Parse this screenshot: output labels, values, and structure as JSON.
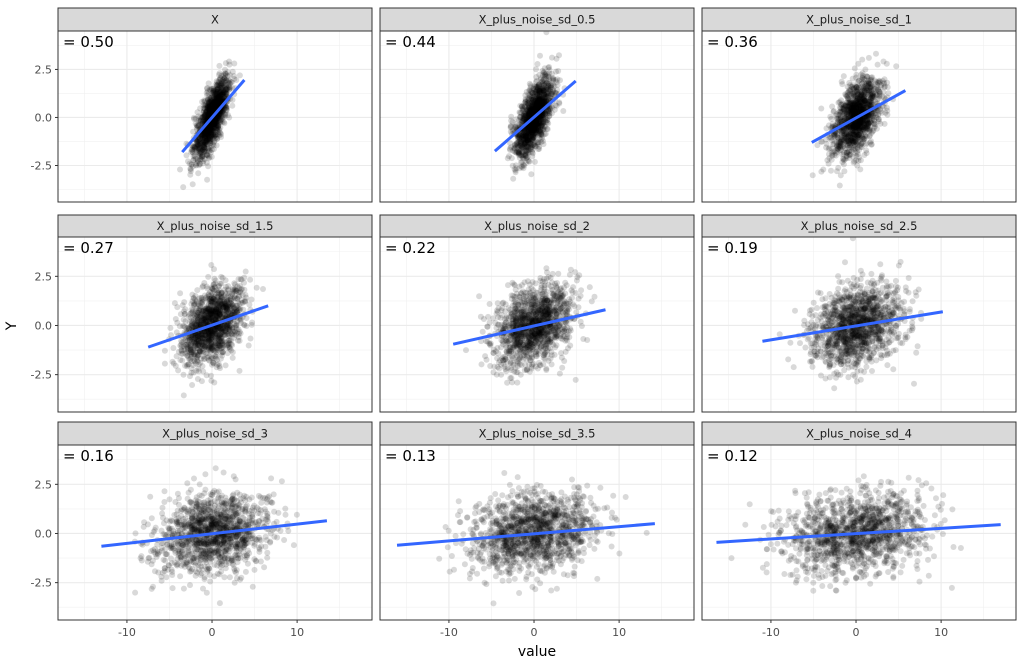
{
  "chart_data": {
    "type": "scatter",
    "facet": "wrap 3x3",
    "xlabel": "value",
    "ylabel": "Y",
    "xlim": [
      -18.1,
      18.8
    ],
    "ylim": [
      -4.4,
      4.5
    ],
    "x_ticks": [
      -10,
      0,
      10
    ],
    "x_tick_labels": [
      "-10",
      "0",
      "10"
    ],
    "y_ticks": [
      -2.5,
      0,
      2.5
    ],
    "y_tick_labels": [
      "-2.5",
      "0.0",
      "2.5"
    ],
    "grid": true,
    "point_color": "#000000",
    "point_alpha": 0.15,
    "line_color": "#3366FF",
    "strip_color": "#D9D9D9",
    "panels": [
      {
        "title": "X",
        "label": "= 0.50",
        "noise_sd": 0,
        "line": [
          [
            -3.5,
            -1.8
          ],
          [
            3.8,
            1.95
          ]
        ]
      },
      {
        "title": "X_plus_noise_sd_0.5",
        "label": "= 0.44",
        "noise_sd": 0.5,
        "line": [
          [
            -4.6,
            -1.75
          ],
          [
            4.9,
            1.9
          ]
        ]
      },
      {
        "title": "X_plus_noise_sd_1",
        "label": "= 0.36",
        "noise_sd": 1,
        "line": [
          [
            -5.2,
            -1.3
          ],
          [
            5.8,
            1.4
          ]
        ]
      },
      {
        "title": "X_plus_noise_sd_1.5",
        "label": "= 0.27",
        "noise_sd": 1.5,
        "line": [
          [
            -7.5,
            -1.1
          ],
          [
            6.6,
            1.0
          ]
        ]
      },
      {
        "title": "X_plus_noise_sd_2",
        "label": "= 0.22",
        "noise_sd": 2,
        "line": [
          [
            -9.5,
            -0.95
          ],
          [
            8.4,
            0.8
          ]
        ]
      },
      {
        "title": "X_plus_noise_sd_2.5",
        "label": "= 0.19",
        "noise_sd": 2.5,
        "line": [
          [
            -11,
            -0.8
          ],
          [
            10.2,
            0.7
          ]
        ]
      },
      {
        "title": "X_plus_noise_sd_3",
        "label": "= 0.16",
        "noise_sd": 3,
        "line": [
          [
            -13,
            -0.65
          ],
          [
            13.5,
            0.65
          ]
        ]
      },
      {
        "title": "X_plus_noise_sd_3.5",
        "label": "= 0.13",
        "noise_sd": 3.5,
        "line": [
          [
            -16.1,
            -0.6
          ],
          [
            14.2,
            0.5
          ]
        ]
      },
      {
        "title": "X_plus_noise_sd_4",
        "label": "= 0.12",
        "noise_sd": 4,
        "line": [
          [
            -16.4,
            -0.45
          ],
          [
            17,
            0.45
          ]
        ]
      }
    ]
  }
}
